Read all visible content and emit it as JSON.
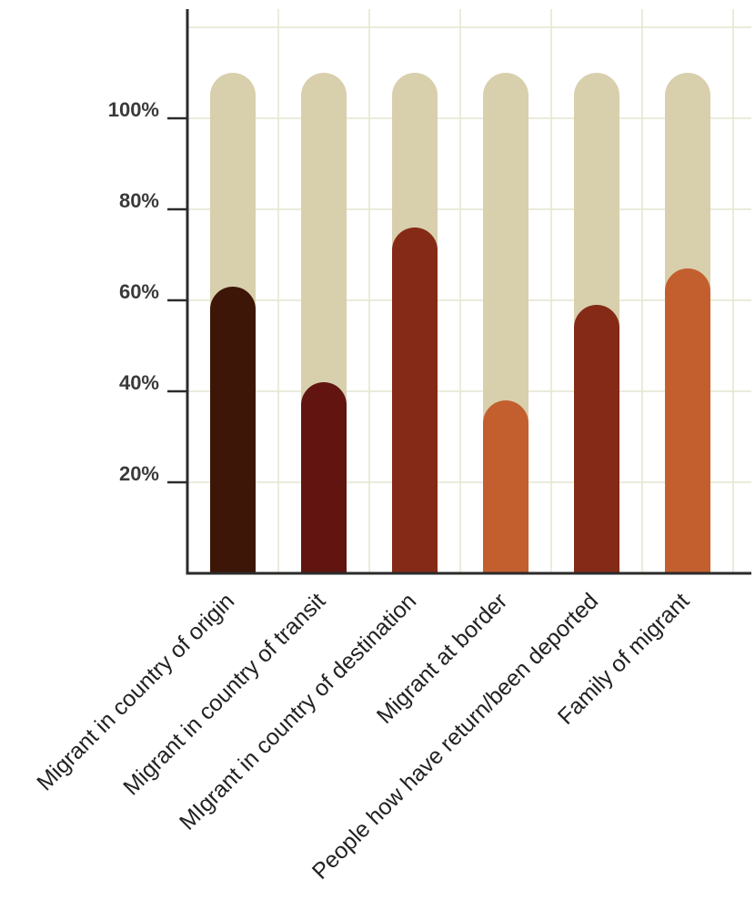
{
  "chart_data": {
    "type": "bar",
    "categories": [
      "Migrant in country of origin",
      "Migrant in country of transit",
      "MIgrant in country of destination",
      "Migrant at border",
      "People how have return/been deported",
      "Family of migrant"
    ],
    "values": [
      63,
      42,
      76,
      38,
      59,
      67
    ],
    "background_value": 110,
    "ylim": [
      0,
      120
    ],
    "yticks": [
      {
        "value": 20,
        "label": "20%"
      },
      {
        "value": 40,
        "label": "40%"
      },
      {
        "value": 60,
        "label": "60%"
      },
      {
        "value": 80,
        "label": "80%"
      },
      {
        "value": 100,
        "label": "100%"
      }
    ],
    "grid": true,
    "title": "",
    "xlabel": "",
    "ylabel": "",
    "colors": {
      "background_bar": "#d8cfad",
      "bars": [
        "#3d1608",
        "#621510",
        "#852a16",
        "#c35f2e",
        "#852a16",
        "#c35f2e"
      ],
      "grid": "#e4e6cf",
      "axis": "#2b2b2b"
    }
  }
}
